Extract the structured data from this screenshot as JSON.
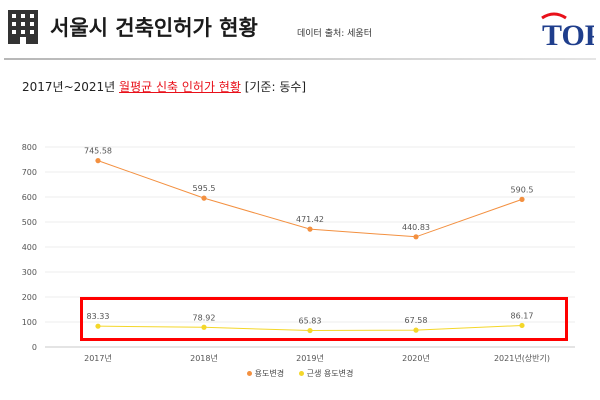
{
  "header": {
    "title": "서울시 건축인허가 현황",
    "source": "데이터 출처: 세움터",
    "logo_text": "TOP"
  },
  "subtitle": {
    "prefix": "2017년~2021년 ",
    "highlight": "월평균 신축 인허가 현황",
    "suffix": " [기준: 동수]"
  },
  "colors": {
    "series1": "#f39040",
    "series2": "#f4d72a",
    "highlight_box": "#ff0000",
    "logo_blue": "#1f3e8c",
    "logo_red": "#e8101a"
  },
  "chart_data": {
    "type": "line",
    "categories": [
      "2017년",
      "2018년",
      "2019년",
      "2020년",
      "2021년(상반기)"
    ],
    "series": [
      {
        "name": "용도변경",
        "values": [
          745.58,
          595.5,
          471.42,
          440.83,
          590.5
        ]
      },
      {
        "name": "근생 용도변경",
        "values": [
          83.33,
          78.92,
          65.83,
          67.58,
          86.17
        ]
      }
    ],
    "yticks": [
      0,
      100,
      200,
      300,
      400,
      500,
      600,
      700,
      800
    ],
    "ylim": [
      0,
      800
    ],
    "grid": true,
    "legend": "bottom"
  }
}
